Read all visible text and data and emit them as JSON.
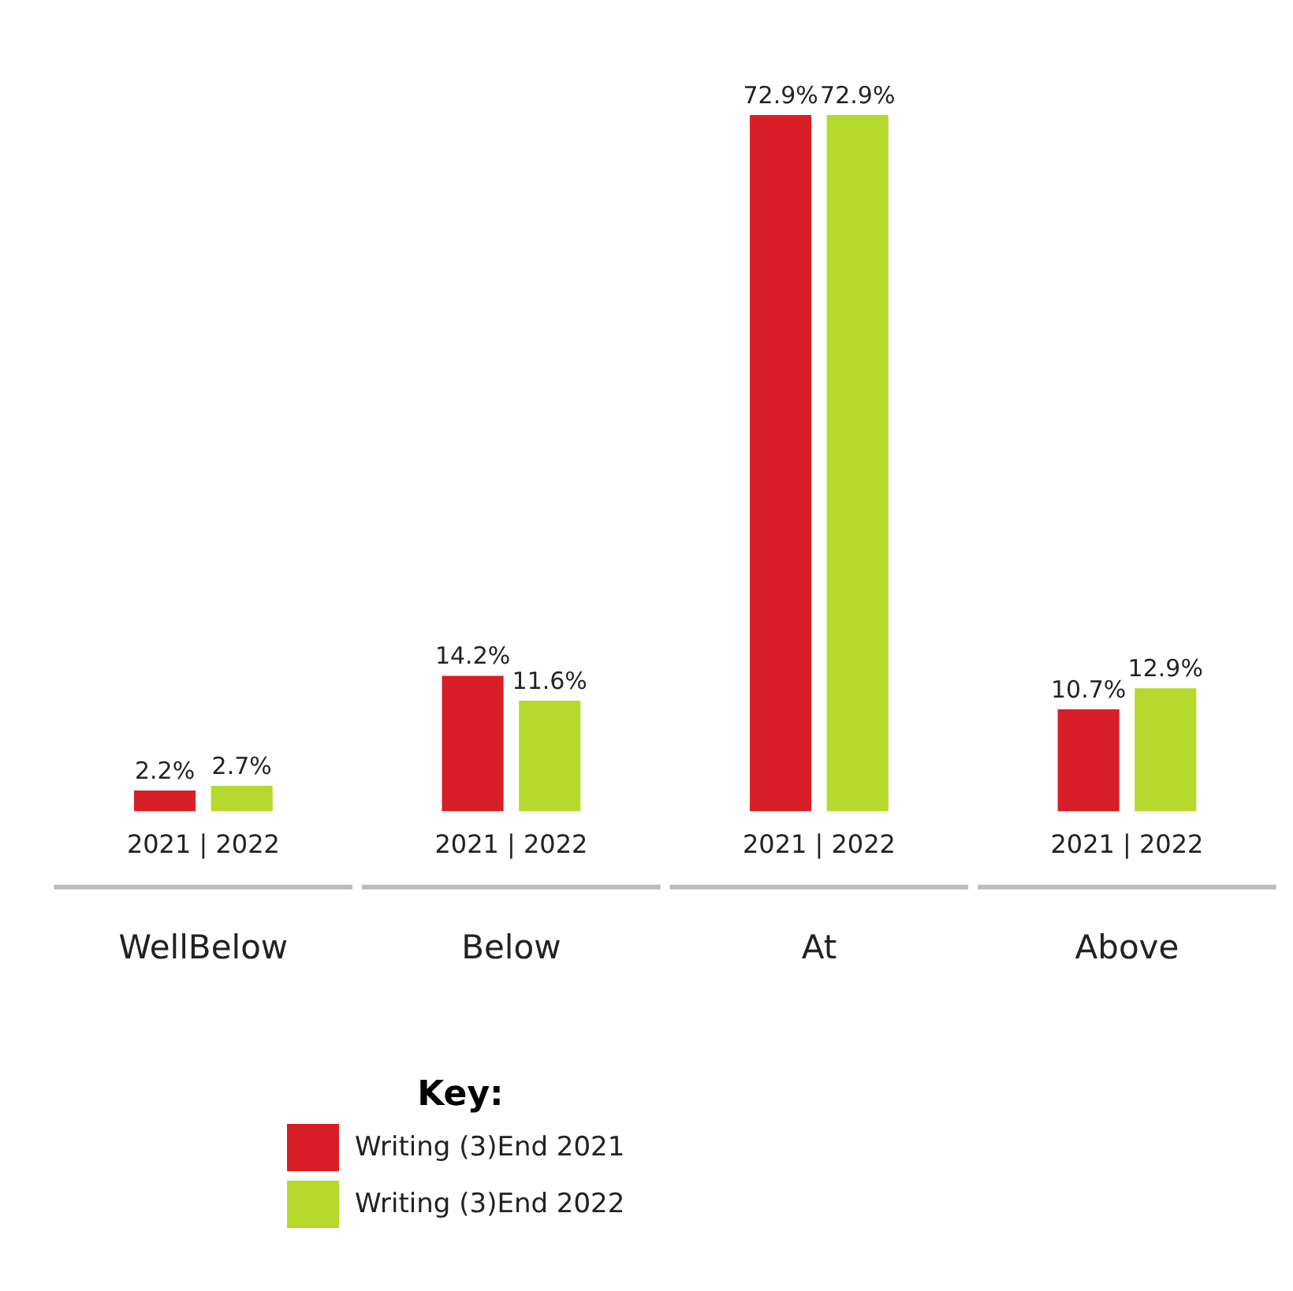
{
  "chart_data": {
    "type": "bar",
    "categories": [
      "WellBelow",
      "Below",
      "At",
      "Above"
    ],
    "series": [
      {
        "name": "Writing (3)End 2021",
        "color": "#d81e27",
        "values": [
          2.2,
          14.2,
          72.9,
          10.7
        ],
        "value_labels": [
          "2.2%",
          "14.2%",
          "72.9%",
          "10.7%"
        ]
      },
      {
        "name": "Writing (3)End 2022",
        "color": "#b5d92c",
        "values": [
          2.7,
          11.6,
          72.9,
          12.9
        ],
        "value_labels": [
          "2.7%",
          "11.6%",
          "72.9%",
          "12.9%"
        ]
      }
    ],
    "annotations": [
      "2021 | 2022",
      "2021 | 2022",
      "2021 | 2022",
      "2021 | 2022"
    ],
    "legend": "bottom",
    "legend_title": "Key:",
    "tick_labels": "x",
    "grid": false
  }
}
